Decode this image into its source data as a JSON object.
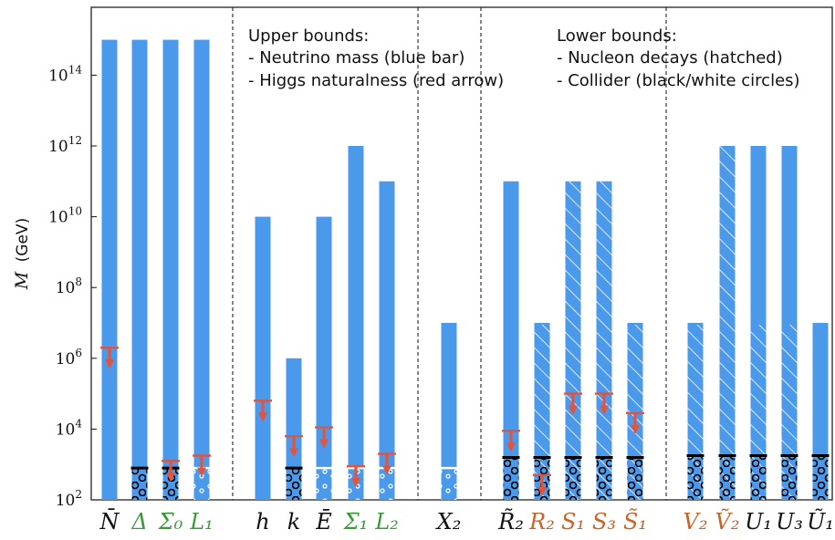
{
  "chart_data": {
    "type": "bar",
    "yscale": "log",
    "ylim_exponents": [
      2,
      15.2
    ],
    "ylabel_symbol": "M",
    "ylabel_unit": "(GeV)",
    "ytick_base": "10",
    "ytick_exponents": [
      "2",
      "4",
      "6",
      "8",
      "10",
      "12",
      "14"
    ],
    "annotations": {
      "upper": {
        "title": "Upper bounds:",
        "lines": [
          "- Neutrino mass (blue bar)",
          "- Higgs naturalness (red arrow)"
        ]
      },
      "lower": {
        "title": "Lower bounds:",
        "lines": [
          "- Nucleon decays (hatched)",
          "- Collider (black/white circles)"
        ]
      }
    },
    "colors": {
      "bar": "#4a99ea",
      "hatch": "#dbe9f8",
      "arrow": "#e0553f",
      "collider_black": "#000000",
      "collider_white": "#ffffff",
      "label_black": "#111111",
      "label_green": "#3a9a3a",
      "label_orange": "#c8632a"
    },
    "groups": [
      {
        "bars": [
          {
            "label": "N̄",
            "color": "black",
            "top": 15,
            "arrow": 6.3,
            "collider": null,
            "hatch_to": null
          },
          {
            "label": "Δ",
            "color": "green",
            "top": 15,
            "arrow": null,
            "collider": {
              "value": 2.9,
              "kind": "black"
            },
            "hatch_to": null
          },
          {
            "label": "Σ̄₀",
            "color": "green",
            "top": 15,
            "arrow": 3.1,
            "collider": {
              "value": 2.9,
              "kind": "black"
            },
            "hatch_to": null
          },
          {
            "label": "L₁",
            "color": "green",
            "top": 15,
            "arrow": 3.25,
            "collider": {
              "value": 2.9,
              "kind": "white"
            },
            "hatch_to": null
          }
        ]
      },
      {
        "bars": [
          {
            "label": "h",
            "color": "black",
            "top": 10,
            "arrow": 4.8,
            "collider": null,
            "hatch_to": null
          },
          {
            "label": "k",
            "color": "black",
            "top": 6,
            "arrow": 3.8,
            "collider": {
              "value": 2.9,
              "kind": "black"
            },
            "hatch_to": null
          },
          {
            "label": "Ē",
            "color": "black",
            "top": 10,
            "arrow": 4.05,
            "collider": {
              "value": 2.9,
              "kind": "white"
            },
            "hatch_to": null
          },
          {
            "label": "Σ̄₁",
            "color": "green",
            "top": 12,
            "arrow": 2.95,
            "collider": {
              "value": 2.9,
              "kind": "white"
            },
            "hatch_to": null
          },
          {
            "label": "L₂",
            "color": "green",
            "top": 11,
            "arrow": 3.3,
            "collider": {
              "value": 2.9,
              "kind": "white"
            },
            "hatch_to": null
          }
        ]
      },
      {
        "bars": [
          {
            "label": "X₂",
            "color": "black",
            "top": 7,
            "arrow": null,
            "collider": {
              "value": 2.9,
              "kind": "white"
            },
            "hatch_to": null
          }
        ]
      },
      {
        "bars": [
          {
            "label": "R̃₂",
            "color": "black",
            "top": 11,
            "arrow": 3.95,
            "collider": {
              "value": 3.2,
              "kind": "black"
            },
            "hatch_to": null
          },
          {
            "label": "R₂",
            "color": "orange",
            "top": 7,
            "arrow": 2.7,
            "collider": {
              "value": 3.2,
              "kind": "black"
            },
            "hatch_to": 6.95
          },
          {
            "label": "S₁",
            "color": "orange",
            "top": 11,
            "arrow": 5.0,
            "collider": {
              "value": 3.2,
              "kind": "black"
            },
            "hatch_to": 11
          },
          {
            "label": "S₃",
            "color": "orange",
            "top": 11,
            "arrow": 5.0,
            "collider": {
              "value": 3.2,
              "kind": "black"
            },
            "hatch_to": 11
          },
          {
            "label": "S̃₁",
            "color": "orange",
            "top": 7,
            "arrow": 4.45,
            "collider": {
              "value": 3.2,
              "kind": "black"
            },
            "hatch_to": 6.95
          }
        ]
      },
      {
        "bars": [
          {
            "label": "V₂",
            "color": "orange",
            "top": 7,
            "arrow": null,
            "collider": {
              "value": 3.25,
              "kind": "black"
            },
            "hatch_to": 6.95
          },
          {
            "label": "Ṽ₂",
            "color": "orange",
            "top": 12,
            "arrow": null,
            "collider": {
              "value": 3.25,
              "kind": "black"
            },
            "hatch_to": 12
          },
          {
            "label": "U₁",
            "color": "black",
            "top": 12,
            "arrow": null,
            "collider": {
              "value": 3.25,
              "kind": "black"
            },
            "hatch_to": 6.95
          },
          {
            "label": "U₃",
            "color": "black",
            "top": 12,
            "arrow": null,
            "collider": {
              "value": 3.25,
              "kind": "black"
            },
            "hatch_to": 6.95
          },
          {
            "label": "Ũ₁",
            "color": "black",
            "top": 7,
            "arrow": null,
            "collider": {
              "value": 3.25,
              "kind": "black"
            },
            "hatch_to": null
          }
        ]
      }
    ]
  }
}
